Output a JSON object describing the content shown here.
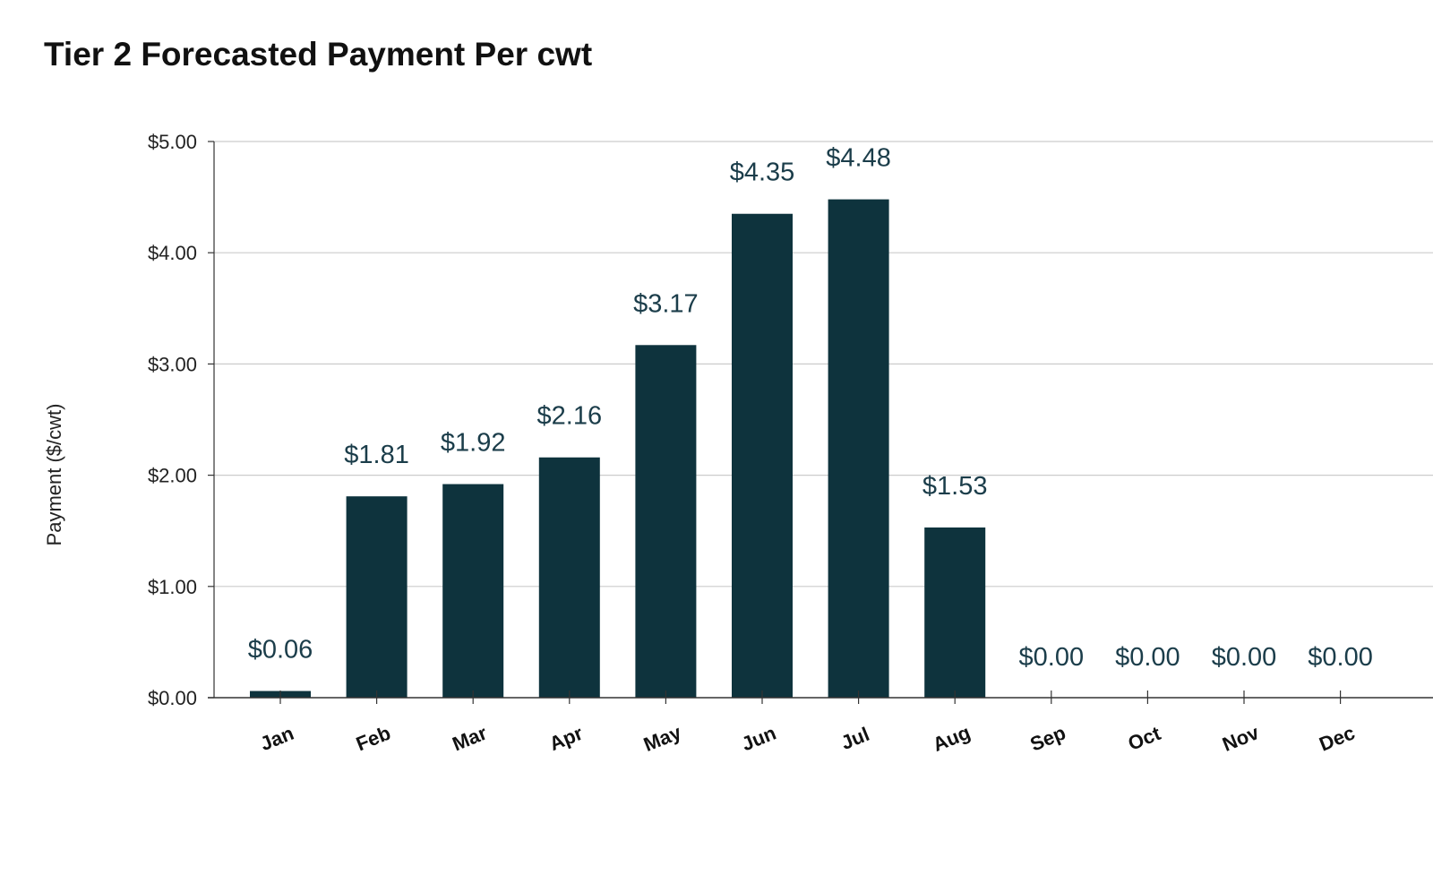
{
  "chart_data": {
    "type": "bar",
    "title": "Tier 2 Forecasted Payment Per cwt",
    "xlabel": "",
    "ylabel": "Payment ($/cwt)",
    "categories": [
      "Jan",
      "Feb",
      "Mar",
      "Apr",
      "May",
      "Jun",
      "Jul",
      "Aug",
      "Sep",
      "Oct",
      "Nov",
      "Dec"
    ],
    "values": [
      0.06,
      1.81,
      1.92,
      2.16,
      3.17,
      4.35,
      4.48,
      1.53,
      0.0,
      0.0,
      0.0,
      0.0
    ],
    "data_labels": [
      "$0.06",
      "$1.81",
      "$1.92",
      "$2.16",
      "$3.17",
      "$4.35",
      "$4.48",
      "$1.53",
      "$0.00",
      "$0.00",
      "$0.00",
      "$0.00"
    ],
    "yticks": [
      0,
      1,
      2,
      3,
      4,
      5
    ],
    "ytick_labels": [
      "$0.00",
      "$1.00",
      "$2.00",
      "$3.00",
      "$4.00",
      "$5.00"
    ],
    "ylim": [
      0,
      5
    ],
    "grid": true,
    "legend": "none",
    "colors": {
      "bar": "#0e333d",
      "data_label": "#1b3d4a",
      "grid": "#cccccc",
      "axis": "#333333"
    }
  }
}
